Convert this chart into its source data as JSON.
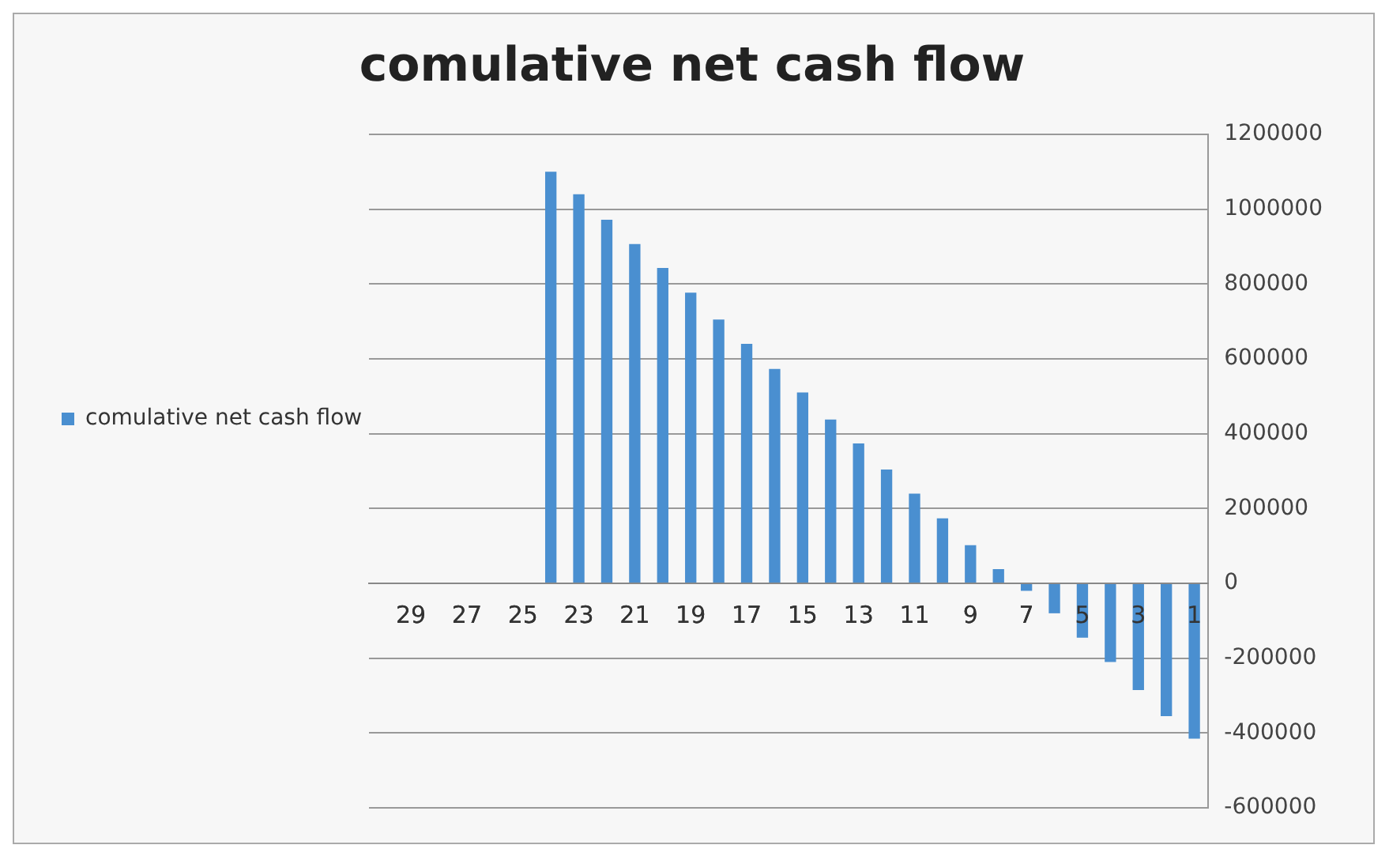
{
  "chart_data": {
    "type": "bar",
    "title": "comulative net cash flow",
    "categories": [
      null,
      "29",
      null,
      "27",
      null,
      "25",
      null,
      "23",
      null,
      "21",
      null,
      "19",
      null,
      "17",
      null,
      "15",
      null,
      "13",
      null,
      "11",
      null,
      "9",
      null,
      "7",
      null,
      "5",
      null,
      "3",
      null,
      "1"
    ],
    "series": [
      {
        "name": "comulative net cash flow",
        "color": "#4a8fd0",
        "values": [
          0,
          0,
          0,
          0,
          0,
          0,
          1100000,
          1040000,
          972000,
          907000,
          843000,
          777000,
          705000,
          640000,
          573000,
          510000,
          438000,
          374000,
          304000,
          240000,
          174000,
          102000,
          38000,
          -20000,
          -80000,
          -145000,
          -210000,
          -285000,
          -355000,
          -415000
        ]
      }
    ],
    "ylim": [
      -600000,
      1200000
    ],
    "yticks": [
      -600000,
      -400000,
      -200000,
      0,
      200000,
      400000,
      600000,
      800000,
      1000000,
      1200000
    ],
    "grid": "y",
    "legend": "left"
  }
}
